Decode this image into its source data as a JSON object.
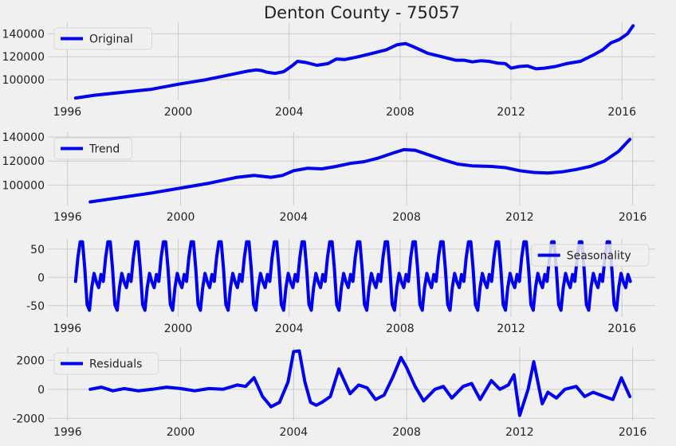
{
  "figure": {
    "title": "Denton County - 75057"
  },
  "colors": {
    "line": "#0000ee",
    "grid": "#cbcbcb",
    "background": "#f0f0f0",
    "text": "#222222"
  },
  "chart_data": [
    {
      "type": "line",
      "legend": "Original",
      "legend_position": "top-left",
      "grid": true,
      "xlim": [
        1995.3,
        2017.2
      ],
      "ylim": [
        82000,
        150000
      ],
      "xticks": [
        1996,
        2000,
        2004,
        2008,
        2012,
        2016
      ],
      "yticks": [
        100000,
        120000,
        140000
      ],
      "x": [
        1996.3,
        1997,
        1998,
        1999,
        2000,
        2001,
        2002,
        2002.5,
        2002.8,
        2003,
        2003.2,
        2003.5,
        2003.8,
        2004.1,
        2004.3,
        2004.6,
        2005,
        2005.4,
        2005.7,
        2006,
        2006.5,
        2007,
        2007.5,
        2007.9,
        2008.2,
        2008.5,
        2009,
        2009.5,
        2010,
        2010.3,
        2010.6,
        2010.9,
        2011.2,
        2011.5,
        2011.8,
        2012,
        2012.3,
        2012.6,
        2012.9,
        2013.2,
        2013.6,
        2014,
        2014.5,
        2015,
        2015.3,
        2015.6,
        2015.9,
        2016.2,
        2016.4
      ],
      "y": [
        84000,
        86500,
        89000,
        91500,
        96000,
        100000,
        105000,
        107500,
        108500,
        108000,
        106500,
        105500,
        107000,
        112000,
        116000,
        115000,
        112500,
        114000,
        118000,
        117500,
        120000,
        123000,
        126000,
        130500,
        131500,
        128500,
        123000,
        120000,
        117000,
        117000,
        115500,
        116500,
        116000,
        114500,
        114000,
        110000,
        111500,
        112000,
        109500,
        110000,
        111500,
        114000,
        116000,
        122000,
        126000,
        132000,
        135000,
        140000,
        147000
      ]
    },
    {
      "type": "line",
      "legend": "Trend",
      "legend_position": "top-left",
      "grid": true,
      "xlim": [
        1995.3,
        2016.8
      ],
      "ylim": [
        83000,
        144000
      ],
      "xticks": [
        1996,
        2000,
        2004,
        2008,
        2012,
        2016
      ],
      "yticks": [
        100000,
        120000,
        140000
      ],
      "x": [
        1996.8,
        1998,
        1999,
        2000,
        2001,
        2002,
        2002.6,
        2003.2,
        2003.6,
        2004,
        2004.5,
        2005,
        2005.5,
        2006,
        2006.5,
        2007,
        2007.5,
        2007.9,
        2008.3,
        2008.8,
        2009.3,
        2009.8,
        2010.3,
        2011,
        2011.5,
        2012,
        2012.5,
        2013,
        2013.5,
        2014,
        2014.5,
        2015,
        2015.5,
        2015.9
      ],
      "y": [
        86000,
        90000,
        93500,
        97500,
        101500,
        106500,
        108000,
        106500,
        108000,
        112000,
        114000,
        113500,
        115500,
        118000,
        119500,
        122500,
        126500,
        129500,
        129000,
        125000,
        121000,
        117500,
        116000,
        115500,
        114500,
        112000,
        110500,
        110000,
        111000,
        113000,
        115500,
        120000,
        128000,
        138000
      ]
    },
    {
      "type": "line",
      "legend": "Seasonality",
      "legend_position": "top-right",
      "grid": true,
      "xlim": [
        1995.3,
        2017.2
      ],
      "ylim": [
        -70,
        68
      ],
      "xticks": [
        1996,
        2000,
        2004,
        2008,
        2012,
        2016
      ],
      "yticks": [
        -50,
        0,
        50
      ],
      "x_start": 1996.3,
      "x_end": 2016.3,
      "period": 1,
      "cycle": [
        -7,
        35,
        63,
        63,
        15,
        -48,
        -58,
        -18,
        7,
        -8,
        -18,
        5
      ]
    },
    {
      "type": "line",
      "legend": "Residuals",
      "legend_position": "top-left",
      "grid": true,
      "xlim": [
        1995.3,
        2016.8
      ],
      "ylim": [
        -2150,
        2900
      ],
      "xticks": [
        1996,
        2000,
        2004,
        2008,
        2012,
        2016
      ],
      "yticks": [
        -2000,
        0,
        2000
      ],
      "x": [
        1996.8,
        1997.2,
        1997.6,
        1998,
        1998.5,
        1999,
        1999.5,
        2000,
        2000.5,
        2001,
        2001.5,
        2002,
        2002.3,
        2002.6,
        2002.9,
        2003.2,
        2003.5,
        2003.8,
        2004,
        2004.2,
        2004.4,
        2004.6,
        2004.8,
        2005,
        2005.3,
        2005.6,
        2006,
        2006.3,
        2006.6,
        2006.9,
        2007.2,
        2007.5,
        2007.8,
        2008,
        2008.3,
        2008.6,
        2009,
        2009.3,
        2009.6,
        2010,
        2010.3,
        2010.6,
        2011,
        2011.3,
        2011.6,
        2011.8,
        2012,
        2012.3,
        2012.5,
        2012.8,
        2013,
        2013.3,
        2013.6,
        2014,
        2014.3,
        2014.6,
        2015,
        2015.3,
        2015.6,
        2015.9
      ],
      "y": [
        0,
        150,
        -100,
        50,
        -100,
        0,
        150,
        50,
        -100,
        50,
        0,
        300,
        200,
        800,
        -500,
        -1200,
        -900,
        500,
        2600,
        2650,
        500,
        -900,
        -1100,
        -900,
        -500,
        1400,
        -300,
        300,
        100,
        -700,
        -400,
        800,
        2200,
        1500,
        200,
        -800,
        0,
        200,
        -600,
        200,
        400,
        -700,
        600,
        0,
        300,
        1000,
        -1800,
        0,
        1900,
        -1000,
        -200,
        -600,
        0,
        200,
        -500,
        -200,
        -500,
        -700,
        800,
        -500
      ]
    }
  ]
}
